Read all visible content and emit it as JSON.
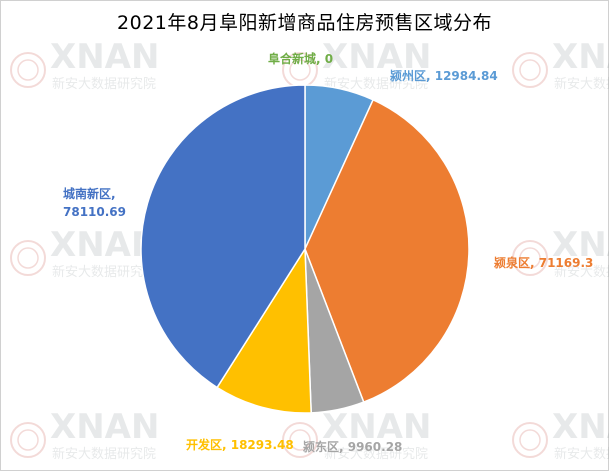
{
  "chart_data": {
    "type": "pie",
    "title": "2021年8月阜阳新增商品住房预售区域分布",
    "slices": [
      {
        "name": "颍州区",
        "value": 12984.84,
        "label": "颍州区, 12984.84",
        "color": "#5B9BD5"
      },
      {
        "name": "颍泉区",
        "value": 71169.3,
        "label": "颍泉区, 71169.3",
        "color": "#ED7D31"
      },
      {
        "name": "颍东区",
        "value": 9960.28,
        "label": "颍东区, 9960.28",
        "color": "#A5A5A5"
      },
      {
        "name": "开发区",
        "value": 18293.48,
        "label": "开发区, 18293.48",
        "color": "#FFC000"
      },
      {
        "name": "城南新区",
        "value": 78110.69,
        "label_lines": [
          "城南新区,",
          "78110.69"
        ],
        "color": "#4472C4"
      },
      {
        "name": "阜合新城",
        "value": 0,
        "label": "阜合新城, 0",
        "color": "#70AD47"
      }
    ],
    "legend": "none"
  },
  "watermark": {
    "brand": "XNAN",
    "subtitle": "新安大数据研究院"
  }
}
